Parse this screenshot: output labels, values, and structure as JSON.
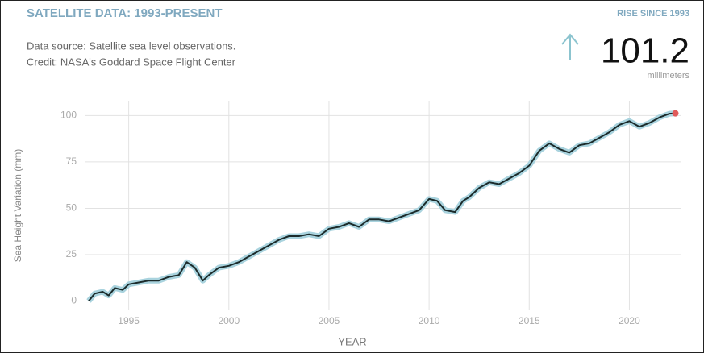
{
  "chart_data": {
    "type": "line",
    "title": "SATELLITE DATA: 1993-PRESENT",
    "subtitle": [
      "Data source: Satellite sea level observations.",
      "Credit: NASA's Goddard Space Flight Center"
    ],
    "headline": {
      "label": "RISE SINCE 1993",
      "value": 101.2,
      "unit": "millimeters"
    },
    "x_label": "YEAR",
    "y_label": "Sea Height Variation (mm)",
    "xlim": [
      1992.8,
      2022.6
    ],
    "xticks": [
      1995,
      2000,
      2005,
      2010,
      2015,
      2020
    ],
    "ylim": [
      -5,
      108
    ],
    "yticks": [
      0,
      25,
      50,
      75,
      100
    ],
    "grid": true,
    "x": [
      1993.0,
      1993.3,
      1993.7,
      1994.0,
      1994.3,
      1994.7,
      1995.0,
      1995.5,
      1996.0,
      1996.5,
      1997.0,
      1997.5,
      1997.9,
      1998.3,
      1998.7,
      1999.0,
      1999.5,
      2000.0,
      2000.5,
      2001.0,
      2001.5,
      2002.0,
      2002.5,
      2003.0,
      2003.5,
      2004.0,
      2004.5,
      2005.0,
      2005.5,
      2006.0,
      2006.5,
      2007.0,
      2007.5,
      2008.0,
      2008.5,
      2009.0,
      2009.5,
      2010.0,
      2010.4,
      2010.8,
      2011.3,
      2011.7,
      2012.0,
      2012.5,
      2013.0,
      2013.5,
      2014.0,
      2014.5,
      2015.0,
      2015.5,
      2016.0,
      2016.5,
      2017.0,
      2017.5,
      2018.0,
      2018.5,
      2019.0,
      2019.5,
      2020.0,
      2020.5,
      2021.0,
      2021.5,
      2022.0,
      2022.3
    ],
    "series": [
      {
        "name": "Sea Height Variation",
        "color": "#1c2b2b",
        "band_color": "#a9d3de",
        "end_color": "#e05a5a",
        "values": [
          0,
          4,
          5,
          3,
          7,
          6,
          9,
          10,
          11,
          11,
          13,
          14,
          21,
          18,
          11,
          14,
          18,
          19,
          21,
          24,
          27,
          30,
          33,
          35,
          35,
          36,
          35,
          39,
          40,
          42,
          40,
          44,
          44,
          43,
          45,
          47,
          49,
          55,
          54,
          49,
          48,
          54,
          56,
          61,
          64,
          63,
          66,
          69,
          73,
          81,
          85,
          82,
          80,
          84,
          85,
          88,
          91,
          95,
          97,
          94,
          96,
          99,
          101,
          101.2
        ]
      }
    ]
  }
}
